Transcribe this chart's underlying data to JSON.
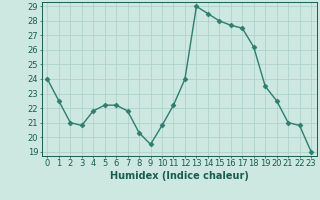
{
  "x": [
    0,
    1,
    2,
    3,
    4,
    5,
    6,
    7,
    8,
    9,
    10,
    11,
    12,
    13,
    14,
    15,
    16,
    17,
    18,
    19,
    20,
    21,
    22,
    23
  ],
  "y": [
    24.0,
    22.5,
    21.0,
    20.8,
    21.8,
    22.2,
    22.2,
    21.8,
    20.3,
    19.5,
    20.8,
    22.2,
    24.0,
    29.0,
    28.5,
    28.0,
    27.7,
    27.5,
    26.2,
    23.5,
    22.5,
    21.0,
    20.8,
    19.0
  ],
  "line_color": "#2e7d6e",
  "marker": "D",
  "marker_size": 2.5,
  "bg_color": "#cce8e0",
  "grid_color": "#aacfc7",
  "xlabel": "Humidex (Indice chaleur)",
  "xlim": [
    -0.5,
    23.5
  ],
  "ylim": [
    18.7,
    29.3
  ],
  "yticks": [
    19,
    20,
    21,
    22,
    23,
    24,
    25,
    26,
    27,
    28,
    29
  ],
  "xticks": [
    0,
    1,
    2,
    3,
    4,
    5,
    6,
    7,
    8,
    9,
    10,
    11,
    12,
    13,
    14,
    15,
    16,
    17,
    18,
    19,
    20,
    21,
    22,
    23
  ],
  "tick_color": "#1a5c50",
  "axis_color": "#1a5c50",
  "xlabel_fontsize": 7,
  "tick_fontsize": 6,
  "line_width": 1.0
}
